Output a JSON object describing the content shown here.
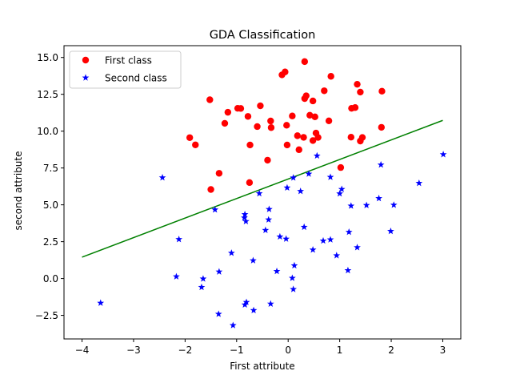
{
  "chart_data": {
    "type": "scatter",
    "title": "GDA Classification",
    "xlabel": "First attribute",
    "ylabel": "second attribute",
    "xlim": [
      -4.35,
      3.35
    ],
    "ylim": [
      -4.1,
      15.8
    ],
    "x_ticks": [
      -4,
      -3,
      -2,
      -1,
      0,
      1,
      2,
      3
    ],
    "x_tick_labels": [
      "−4",
      "−3",
      "−2",
      "−1",
      "0",
      "1",
      "2",
      "3"
    ],
    "y_ticks": [
      -2.5,
      0.0,
      2.5,
      5.0,
      7.5,
      10.0,
      12.5,
      15.0
    ],
    "y_tick_labels": [
      "−2.5",
      "0.0",
      "2.5",
      "5.0",
      "7.5",
      "10.0",
      "12.5",
      "15.0"
    ],
    "grid": false,
    "legend_position": "top-left",
    "series": [
      {
        "name": "First class",
        "marker": "circle",
        "color": "#ff0000",
        "points": [
          [
            0.32,
            14.72
          ],
          [
            -0.06,
            14.02
          ],
          [
            -0.12,
            13.82
          ],
          [
            0.83,
            13.72
          ],
          [
            1.34,
            13.18
          ],
          [
            0.7,
            12.74
          ],
          [
            1.82,
            12.71
          ],
          [
            1.4,
            12.65
          ],
          [
            0.35,
            12.4
          ],
          [
            0.32,
            12.21
          ],
          [
            -1.52,
            12.13
          ],
          [
            0.48,
            12.05
          ],
          [
            -0.54,
            11.72
          ],
          [
            -0.98,
            11.55
          ],
          [
            -0.92,
            11.54
          ],
          [
            1.3,
            11.6
          ],
          [
            1.23,
            11.55
          ],
          [
            -1.17,
            11.28
          ],
          [
            0.42,
            11.08
          ],
          [
            0.52,
            10.97
          ],
          [
            0.08,
            11.03
          ],
          [
            -0.78,
            11.0
          ],
          [
            -0.34,
            10.69
          ],
          [
            0.79,
            10.7
          ],
          [
            -1.23,
            10.53
          ],
          [
            -0.03,
            10.4
          ],
          [
            -0.6,
            10.31
          ],
          [
            -0.33,
            10.24
          ],
          [
            1.81,
            10.26
          ],
          [
            0.54,
            9.87
          ],
          [
            0.18,
            9.69
          ],
          [
            0.3,
            9.58
          ],
          [
            0.58,
            9.57
          ],
          [
            1.22,
            9.59
          ],
          [
            1.44,
            9.57
          ],
          [
            1.4,
            9.33
          ],
          [
            -1.91,
            9.56
          ],
          [
            -1.8,
            9.07
          ],
          [
            -0.74,
            9.06
          ],
          [
            -0.02,
            9.06
          ],
          [
            0.48,
            9.36
          ],
          [
            0.21,
            8.74
          ],
          [
            -0.4,
            8.03
          ],
          [
            1.02,
            7.53
          ],
          [
            -1.34,
            7.14
          ],
          [
            -0.75,
            6.51
          ],
          [
            -1.5,
            6.04
          ]
        ]
      },
      {
        "name": "Second class",
        "marker": "star",
        "color": "#0000ff",
        "points": [
          [
            3.01,
            8.42
          ],
          [
            0.56,
            8.33
          ],
          [
            1.8,
            7.72
          ],
          [
            0.4,
            7.1
          ],
          [
            0.82,
            6.88
          ],
          [
            0.1,
            6.84
          ],
          [
            -2.44,
            6.85
          ],
          [
            2.54,
            6.47
          ],
          [
            -0.02,
            6.16
          ],
          [
            1.04,
            6.06
          ],
          [
            0.24,
            5.92
          ],
          [
            -0.56,
            5.77
          ],
          [
            1.0,
            5.76
          ],
          [
            1.76,
            5.44
          ],
          [
            1.52,
            4.97
          ],
          [
            2.05,
            4.99
          ],
          [
            1.22,
            4.93
          ],
          [
            -1.42,
            4.67
          ],
          [
            -0.37,
            4.7
          ],
          [
            -0.84,
            4.35
          ],
          [
            -0.85,
            4.12
          ],
          [
            -0.82,
            3.88
          ],
          [
            -0.38,
            3.99
          ],
          [
            0.31,
            3.49
          ],
          [
            -0.44,
            3.28
          ],
          [
            1.18,
            3.15
          ],
          [
            1.99,
            3.21
          ],
          [
            -0.16,
            2.84
          ],
          [
            -0.04,
            2.69
          ],
          [
            0.68,
            2.56
          ],
          [
            0.82,
            2.64
          ],
          [
            -2.12,
            2.66
          ],
          [
            1.34,
            2.11
          ],
          [
            0.48,
            1.95
          ],
          [
            -1.1,
            1.73
          ],
          [
            0.94,
            1.56
          ],
          [
            -0.68,
            1.22
          ],
          [
            0.12,
            0.88
          ],
          [
            1.16,
            0.55
          ],
          [
            -0.22,
            0.49
          ],
          [
            -1.34,
            0.46
          ],
          [
            -2.17,
            0.13
          ],
          [
            0.08,
            0.03
          ],
          [
            -1.65,
            -0.02
          ],
          [
            -1.68,
            -0.59
          ],
          [
            0.1,
            -0.73
          ],
          [
            -3.64,
            -1.66
          ],
          [
            -0.81,
            -1.61
          ],
          [
            -0.34,
            -1.72
          ],
          [
            -0.84,
            -1.78
          ],
          [
            -0.67,
            -2.16
          ],
          [
            -1.35,
            -2.41
          ],
          [
            -1.07,
            -3.18
          ]
        ]
      }
    ],
    "boundary": {
      "color": "#008000",
      "x": [
        -4.0,
        3.0
      ],
      "y": [
        1.45,
        10.73
      ]
    }
  }
}
